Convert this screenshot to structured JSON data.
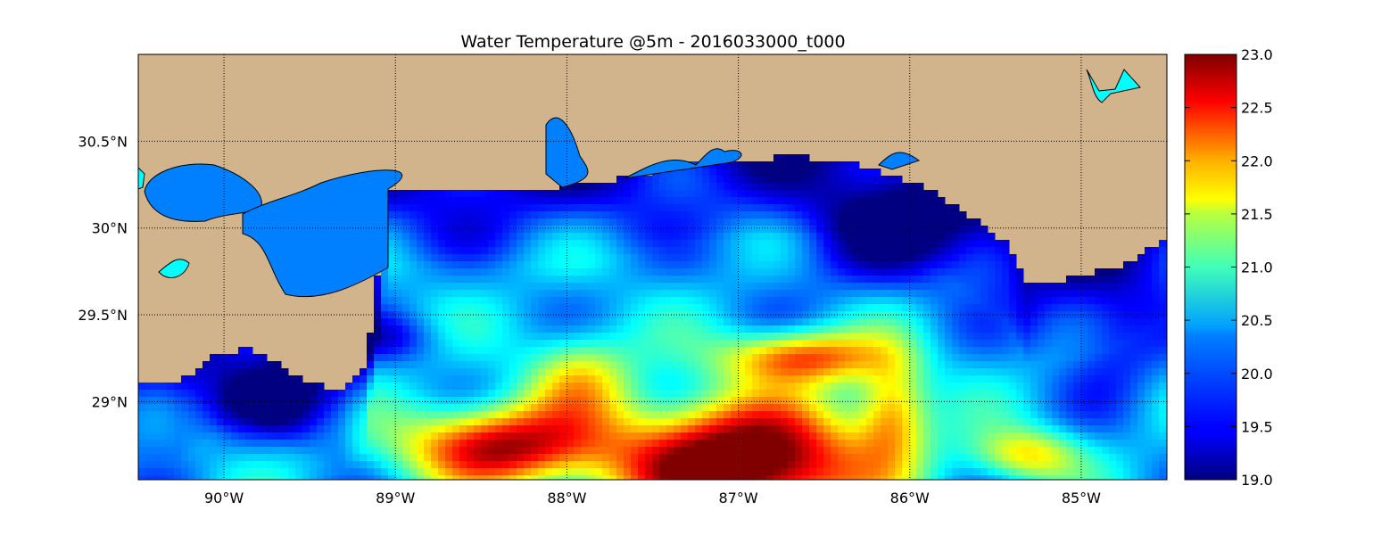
{
  "title": "Water Temperature @5m - 2016033000_t000",
  "map": {
    "lon_range": [
      -90.5,
      -84.5
    ],
    "lat_range": [
      28.55,
      31.0
    ],
    "lon_ticks": [
      {
        "value": -90,
        "label": "90°W"
      },
      {
        "value": -89,
        "label": "89°W"
      },
      {
        "value": -88,
        "label": "88°W"
      },
      {
        "value": -87,
        "label": "87°W"
      },
      {
        "value": -86,
        "label": "86°W"
      },
      {
        "value": -85,
        "label": "85°W"
      }
    ],
    "lat_ticks": [
      {
        "value": 30.5,
        "label": "30.5°N"
      },
      {
        "value": 30.0,
        "label": "30°N"
      },
      {
        "value": 29.5,
        "label": "29.5°N"
      },
      {
        "value": 29.0,
        "label": "29°N"
      }
    ],
    "grid": "dotted",
    "land_color": "#d2b48c",
    "inland_water_color": "#00ffff",
    "coast_color": "#000000"
  },
  "colorbar": {
    "min": 19.0,
    "max": 23.0,
    "colormap": "jet",
    "tick_labels": [
      "23.0",
      "22.5",
      "22.0",
      "21.5",
      "21.0",
      "20.5",
      "20.0",
      "19.5",
      "19.0"
    ],
    "tick_values": [
      23.0,
      22.5,
      22.0,
      21.5,
      21.0,
      20.5,
      20.0,
      19.5,
      19.0
    ]
  },
  "temperature_features": [
    {
      "region": "loop current warm core south of 29N near 87W",
      "value": 23.0
    },
    {
      "region": "warm filaments 88.5W-86W around 29N",
      "value": 22.5
    },
    {
      "region": "nearshore shelf 86.5W-85.5W at 30.2N",
      "value": 19.1
    },
    {
      "region": "shelf near 89.5W at 29.1N",
      "value": 19.4
    },
    {
      "region": "mid shelf 88W-87W at 29.8N",
      "value": 20.4
    }
  ]
}
